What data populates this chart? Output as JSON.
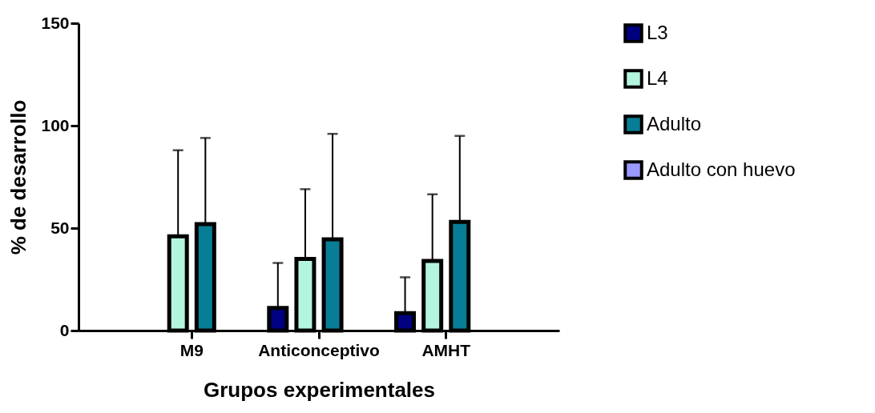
{
  "chart_data": {
    "type": "bar",
    "xlabel": "Grupos experimentales",
    "ylabel": "% de desarrollo",
    "categories": [
      "M9",
      "Anticonceptivo",
      "AMHT"
    ],
    "series": [
      {
        "name": "L3",
        "color": "#000080",
        "values": [
          null,
          11,
          8.5
        ],
        "errors": [
          null,
          [
            11,
            33
          ],
          [
            8.5,
            26
          ]
        ]
      },
      {
        "name": "L4",
        "color": "#b3f5dd",
        "values": [
          46,
          35,
          34
        ],
        "errors": [
          [
            46,
            88
          ],
          [
            35,
            69
          ],
          [
            34,
            66.5
          ]
        ]
      },
      {
        "name": "Adulto",
        "color": "#087d96",
        "values": [
          52,
          44.5,
          53
        ],
        "errors": [
          [
            52,
            94
          ],
          [
            44.5,
            96
          ],
          [
            53,
            95
          ]
        ]
      },
      {
        "name": "Adulto con huevo",
        "color": "#9999ff",
        "values": [
          null,
          null,
          null
        ],
        "errors": [
          null,
          null,
          null
        ]
      }
    ],
    "ylim": [
      0,
      150
    ],
    "yticks": [
      0,
      50,
      100,
      150
    ],
    "grid": false,
    "legend": "top right"
  }
}
